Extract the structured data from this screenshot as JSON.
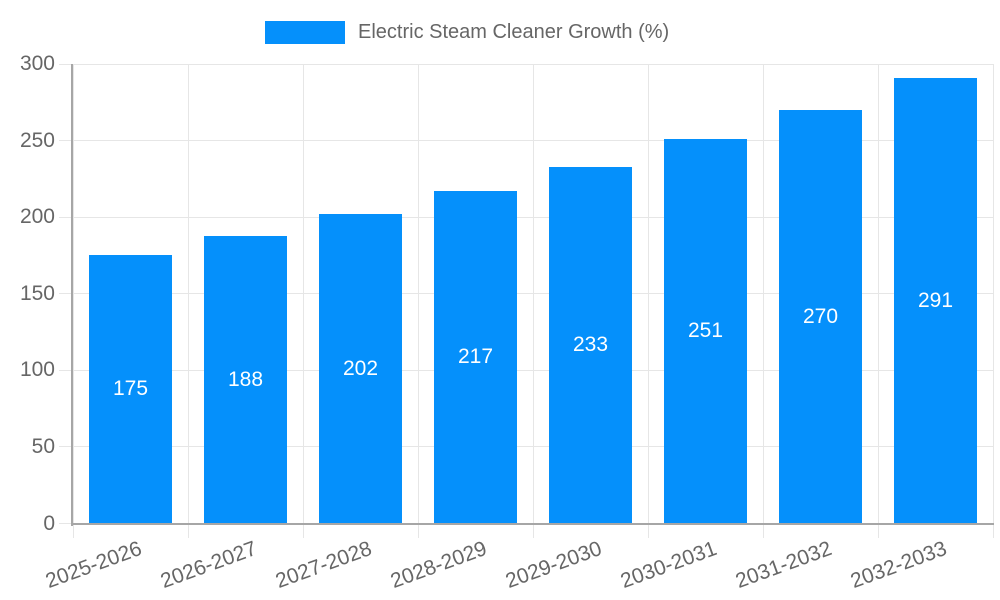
{
  "legend": {
    "label": "Electric Steam Cleaner Growth (%)"
  },
  "chart_data": {
    "type": "bar",
    "title": "Electric Steam Cleaner Growth (%)",
    "categories": [
      "2025-2026",
      "2026-2027",
      "2027-2028",
      "2028-2029",
      "2029-2030",
      "2030-2031",
      "2031-2032",
      "2032-2033"
    ],
    "values": [
      175,
      188,
      202,
      217,
      233,
      251,
      270,
      291
    ],
    "series": [
      {
        "name": "Electric Steam Cleaner Growth (%)",
        "values": [
          175,
          188,
          202,
          217,
          233,
          251,
          270,
          291
        ]
      }
    ],
    "xlabel": "",
    "ylabel": "",
    "ylim": [
      0,
      300
    ],
    "yticks": [
      0,
      50,
      100,
      150,
      200,
      250,
      300
    ],
    "grid": true,
    "legend_position": "top",
    "bar_color": "#0590fb",
    "data_label_color": "#ffffff",
    "axis_text_color": "#666666",
    "gridline_color": "#e6e6e6",
    "axis_line_color": "#a6a6a6"
  }
}
